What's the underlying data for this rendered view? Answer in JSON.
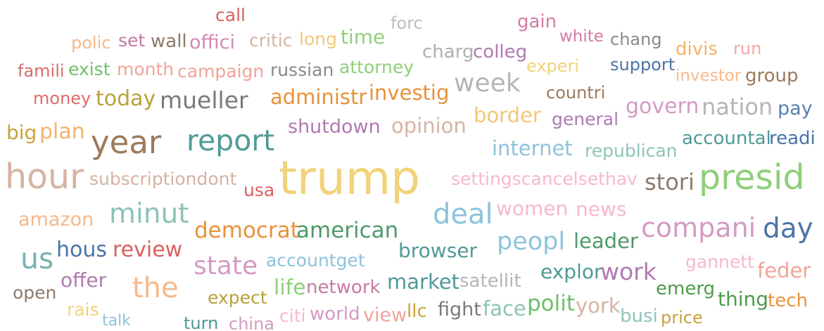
{
  "words": [
    {
      "text": "call",
      "color": "#d95f5f"
    },
    {
      "text": "forc",
      "color": "#bdbdbd"
    },
    {
      "text": "gain",
      "color": "#d47aa3"
    },
    {
      "text": "polic",
      "color": "#f6b98b"
    },
    {
      "text": "set",
      "color": "#c77aa3"
    },
    {
      "text": "wall",
      "color": "#8c7a6b"
    },
    {
      "text": "offici",
      "color": "#d48ab2"
    },
    {
      "text": "critic",
      "color": "#d6b3a3"
    },
    {
      "text": "long",
      "color": "#f2c879"
    },
    {
      "text": "time",
      "color": "#8fcf7a"
    },
    {
      "text": "white",
      "color": "#d47aa3"
    },
    {
      "text": "chang",
      "color": "#8a8a8a"
    },
    {
      "text": "divis",
      "color": "#f2b46b"
    },
    {
      "text": "run",
      "color": "#f6a6a6"
    },
    {
      "text": "charg",
      "color": "#b0b0b0"
    },
    {
      "text": "colleg",
      "color": "#b07ab0"
    },
    {
      "text": "famili",
      "color": "#d96b6b"
    },
    {
      "text": "exist",
      "color": "#6fbf6a"
    },
    {
      "text": "month",
      "color": "#f0a49a"
    },
    {
      "text": "campaign",
      "color": "#f0a49a"
    },
    {
      "text": "russian",
      "color": "#8a8a8a"
    },
    {
      "text": "attorney",
      "color": "#8fcf7a"
    },
    {
      "text": "experi",
      "color": "#f2d27a"
    },
    {
      "text": "support",
      "color": "#4a74a8"
    },
    {
      "text": "investor",
      "color": "#f6b98b"
    },
    {
      "text": "group",
      "color": "#9c7a5a"
    },
    {
      "text": "money",
      "color": "#e06b6b"
    },
    {
      "text": "today",
      "color": "#b8a23a"
    },
    {
      "text": "mueller",
      "color": "#7a7a7a"
    },
    {
      "text": "administr",
      "color": "#e8913a"
    },
    {
      "text": "investig",
      "color": "#e8913a"
    },
    {
      "text": "week",
      "color": "#b5b5b5"
    },
    {
      "text": "countri",
      "color": "#9c7a5a"
    },
    {
      "text": "govern",
      "color": "#d39bc3"
    },
    {
      "text": "nation",
      "color": "#b5b5b5"
    },
    {
      "text": "pay",
      "color": "#5a7fb0"
    },
    {
      "text": "big",
      "color": "#c9a23a"
    },
    {
      "text": "plan",
      "color": "#f2b46b"
    },
    {
      "text": "year",
      "color": "#9c7a5a"
    },
    {
      "text": "report",
      "color": "#4f9a96"
    },
    {
      "text": "shutdown",
      "color": "#b07ab0"
    },
    {
      "text": "opinion",
      "color": "#d6b3a3"
    },
    {
      "text": "border",
      "color": "#f2c879"
    },
    {
      "text": "general",
      "color": "#b07ab0"
    },
    {
      "text": "accountal",
      "color": "#4f9a96"
    },
    {
      "text": "readi",
      "color": "#4a74a8"
    },
    {
      "text": "internet",
      "color": "#8ec3dc"
    },
    {
      "text": "republican",
      "color": "#8ec3b8"
    },
    {
      "text": "hour",
      "color": "#d6b3a3"
    },
    {
      "text": "subscriptiondont",
      "color": "#d6b3a3"
    },
    {
      "text": "usa",
      "color": "#d95f5f"
    },
    {
      "text": "trump",
      "color": "#f2d27a"
    },
    {
      "text": "settingscancelsethav",
      "color": "#f7b8cc"
    },
    {
      "text": "stori",
      "color": "#8c7a6b"
    },
    {
      "text": "presid",
      "color": "#8fcf7a"
    },
    {
      "text": "amazon",
      "color": "#f6b98b"
    },
    {
      "text": "minut",
      "color": "#8ec3b8"
    },
    {
      "text": "deal",
      "color": "#8ec3dc"
    },
    {
      "text": "women",
      "color": "#f7b8cc"
    },
    {
      "text": "news",
      "color": "#f7b8cc"
    },
    {
      "text": "compani",
      "color": "#d39bc3"
    },
    {
      "text": "day",
      "color": "#4a74a8"
    },
    {
      "text": "democrat",
      "color": "#e8913a"
    },
    {
      "text": "american",
      "color": "#4f9a6a"
    },
    {
      "text": "us",
      "color": "#7ab3b3"
    },
    {
      "text": "hous",
      "color": "#4a74a8"
    },
    {
      "text": "review",
      "color": "#d95f5f"
    },
    {
      "text": "state",
      "color": "#d39bc3"
    },
    {
      "text": "accountget",
      "color": "#8ec3dc"
    },
    {
      "text": "browser",
      "color": "#4f9a96"
    },
    {
      "text": "peopl",
      "color": "#8ec3dc"
    },
    {
      "text": "leader",
      "color": "#4f9a6a"
    },
    {
      "text": "gannett",
      "color": "#f7b8cc"
    },
    {
      "text": "feder",
      "color": "#f0a49a"
    },
    {
      "text": "offer",
      "color": "#b07ab0"
    },
    {
      "text": "the",
      "color": "#f6b98b"
    },
    {
      "text": "explor",
      "color": "#4f9a96"
    },
    {
      "text": "work",
      "color": "#b07ab0"
    },
    {
      "text": "open",
      "color": "#8c7a6b"
    },
    {
      "text": "expect",
      "color": "#b8a23a"
    },
    {
      "text": "life",
      "color": "#8fcf7a"
    },
    {
      "text": "network",
      "color": "#c77aa3"
    },
    {
      "text": "market",
      "color": "#4f9a96"
    },
    {
      "text": "satellit",
      "color": "#b5b5b5"
    },
    {
      "text": "emerg",
      "color": "#4f9a4a"
    },
    {
      "text": "rais",
      "color": "#f2d27a"
    },
    {
      "text": "citi",
      "color": "#f7b8cc"
    },
    {
      "text": "world",
      "color": "#d39bc3"
    },
    {
      "text": "view",
      "color": "#f0a49a"
    },
    {
      "text": "llc",
      "color": "#c9a23a"
    },
    {
      "text": "fight",
      "color": "#7a7a7a"
    },
    {
      "text": "face",
      "color": "#8ec3b8"
    },
    {
      "text": "polit",
      "color": "#6fbf6a"
    },
    {
      "text": "york",
      "color": "#d6b3a3"
    },
    {
      "text": "busi",
      "color": "#8ec3b8"
    },
    {
      "text": "price",
      "color": "#c9a23a"
    },
    {
      "text": "thing",
      "color": "#4f9a4a"
    },
    {
      "text": "tech",
      "color": "#e8913a"
    },
    {
      "text": "talk",
      "color": "#8ec3dc"
    },
    {
      "text": "turn",
      "color": "#4f9a96"
    },
    {
      "text": "china",
      "color": "#d39bc3"
    }
  ]
}
